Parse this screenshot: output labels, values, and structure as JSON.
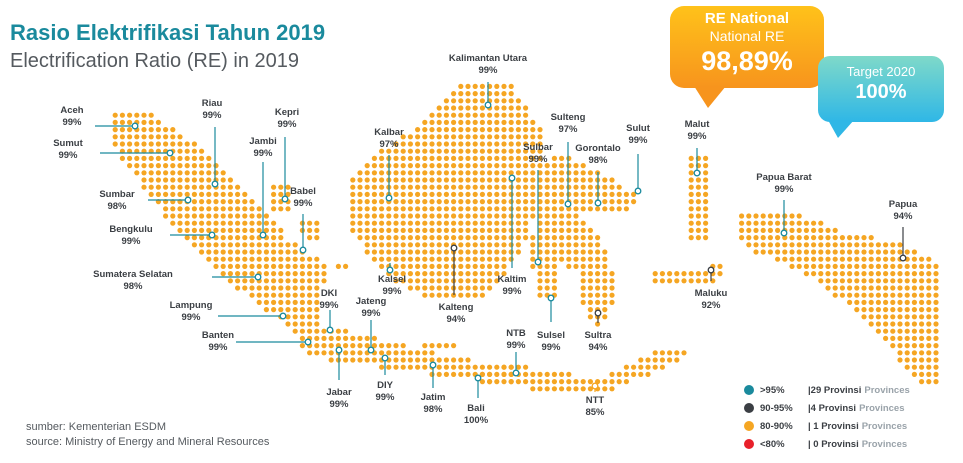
{
  "title": "Rasio Elektrifikasi Tahun 2019",
  "subtitle": "Electrification Ratio (RE) in 2019",
  "re_bubble": {
    "line1": "RE National",
    "line2": "National RE",
    "value": "98,89%"
  },
  "target_bubble": {
    "label": "Target 2020",
    "value": "100%"
  },
  "colors": {
    "dot": "#f5a623",
    "high": "#1a8a9d",
    "mid": "#3b3f44",
    "low": "#f5a623",
    "verylow": "#e8202a",
    "line": "#1a8a9d"
  },
  "provinces": [
    {
      "name": "Aceh",
      "value": "99%",
      "category": "high"
    },
    {
      "name": "Sumut",
      "value": "99%",
      "category": "high"
    },
    {
      "name": "Riau",
      "value": "99%",
      "category": "high"
    },
    {
      "name": "Kepri",
      "value": "99%",
      "category": "high"
    },
    {
      "name": "Jambi",
      "value": "99%",
      "category": "high"
    },
    {
      "name": "Babel",
      "value": "99%",
      "category": "high"
    },
    {
      "name": "Sumbar",
      "value": "98%",
      "category": "high"
    },
    {
      "name": "Bengkulu",
      "value": "99%",
      "category": "high"
    },
    {
      "name": "Sumatera Selatan",
      "value": "98%",
      "category": "high"
    },
    {
      "name": "Lampung",
      "value": "99%",
      "category": "high"
    },
    {
      "name": "Banten",
      "value": "99%",
      "category": "high"
    },
    {
      "name": "DKI",
      "value": "99%",
      "category": "high"
    },
    {
      "name": "Jabar",
      "value": "99%",
      "category": "high"
    },
    {
      "name": "Jateng",
      "value": "99%",
      "category": "high"
    },
    {
      "name": "DIY",
      "value": "99%",
      "category": "high"
    },
    {
      "name": "Jatim",
      "value": "98%",
      "category": "high"
    },
    {
      "name": "Bali",
      "value": "100%",
      "category": "high"
    },
    {
      "name": "NTB",
      "value": "99%",
      "category": "high"
    },
    {
      "name": "NTT",
      "value": "85%",
      "category": "low"
    },
    {
      "name": "Kalbar",
      "value": "97%",
      "category": "high"
    },
    {
      "name": "Kalsel",
      "value": "99%",
      "category": "high"
    },
    {
      "name": "Kalteng",
      "value": "94%",
      "category": "mid"
    },
    {
      "name": "Kalimantan Utara",
      "value": "99%",
      "category": "high"
    },
    {
      "name": "Kaltim",
      "value": "99%",
      "category": "high"
    },
    {
      "name": "Sulbar",
      "value": "99%",
      "category": "high"
    },
    {
      "name": "Sulteng",
      "value": "97%",
      "category": "high"
    },
    {
      "name": "Gorontalo",
      "value": "98%",
      "category": "high"
    },
    {
      "name": "Sulut",
      "value": "99%",
      "category": "high"
    },
    {
      "name": "Sulsel",
      "value": "99%",
      "category": "high"
    },
    {
      "name": "Sultra",
      "value": "94%",
      "category": "mid"
    },
    {
      "name": "Malut",
      "value": "99%",
      "category": "high"
    },
    {
      "name": "Maluku",
      "value": "92%",
      "category": "mid"
    },
    {
      "name": "Papua Barat",
      "value": "99%",
      "category": "high"
    },
    {
      "name": "Papua",
      "value": "94%",
      "category": "mid"
    }
  ],
  "legend": [
    {
      "range": ">95%",
      "count": "|29 Provinsi",
      "provinces": "Provinces",
      "color": "#1a8a9d"
    },
    {
      "range": "90-95%",
      "count": "|4 Provinsi",
      "provinces": "Provinces",
      "color": "#3b3f44"
    },
    {
      "range": "80-90%",
      "count": "| 1 Provinsi",
      "provinces": "Provinces",
      "color": "#f5a623"
    },
    {
      "range": "<80%",
      "count": "| 0 Provinsi",
      "provinces": "Provinces",
      "color": "#e8202a"
    }
  ],
  "source": {
    "line1": "sumber: Kementerian ESDM",
    "line2": "source: Ministry of Energy and Mineral Resources"
  }
}
